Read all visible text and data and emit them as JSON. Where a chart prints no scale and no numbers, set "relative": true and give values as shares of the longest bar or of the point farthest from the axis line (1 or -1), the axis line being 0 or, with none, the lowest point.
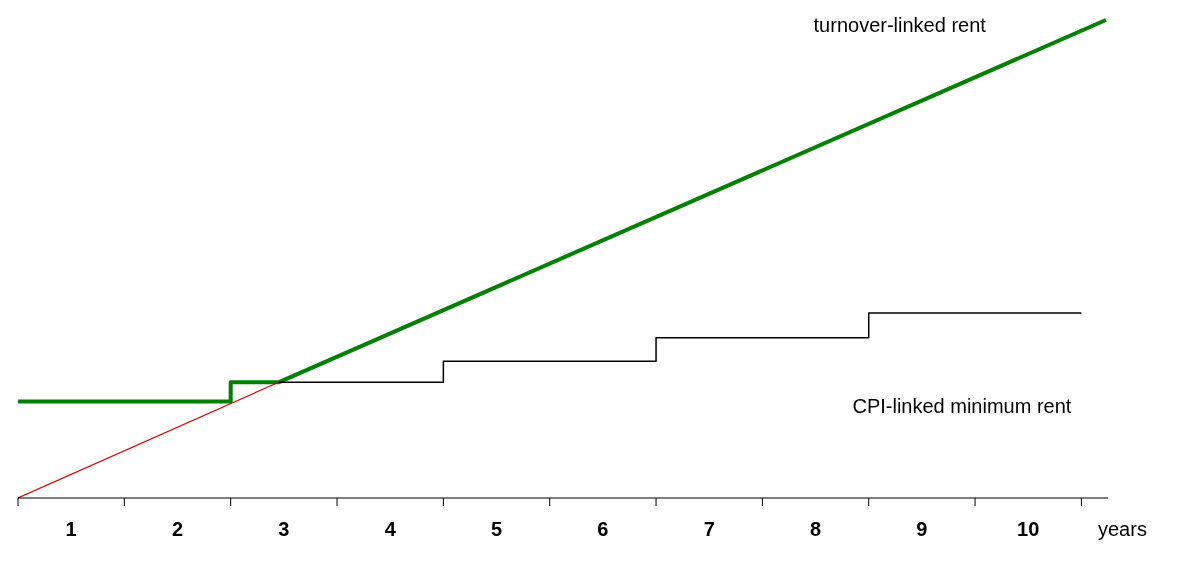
{
  "chart_data": {
    "type": "line",
    "relative": true,
    "xlabel": "years",
    "xlim": [
      0,
      10.25
    ],
    "xticks": [
      {
        "value": 0,
        "label": null
      },
      {
        "value": 0.5,
        "label": "1"
      },
      {
        "value": 1,
        "label": null
      },
      {
        "value": 1.5,
        "label": "2"
      },
      {
        "value": 2,
        "label": null
      },
      {
        "value": 2.5,
        "label": "3"
      },
      {
        "value": 3,
        "label": null
      },
      {
        "value": 3.5,
        "label": "4"
      },
      {
        "value": 4,
        "label": null
      },
      {
        "value": 4.5,
        "label": "5"
      },
      {
        "value": 5,
        "label": null
      },
      {
        "value": 5.5,
        "label": "6"
      },
      {
        "value": 6,
        "label": null
      },
      {
        "value": 6.5,
        "label": "7"
      },
      {
        "value": 7,
        "label": null
      },
      {
        "value": 7.5,
        "label": "8"
      },
      {
        "value": 8,
        "label": null
      },
      {
        "value": 8.5,
        "label": "9"
      },
      {
        "value": 9,
        "label": null
      },
      {
        "value": 9.5,
        "label": "10"
      },
      {
        "value": 10,
        "label": null
      }
    ],
    "grid": false,
    "legend": false,
    "marker": "none",
    "series": [
      {
        "name": "turnover-linked rent",
        "color": "#008000",
        "x": [
          0,
          2,
          2,
          2.45,
          10.23
        ],
        "values": [
          0.202,
          0.202,
          0.242,
          0.242,
          1
        ]
      },
      {
        "color": "#e00000",
        "x": [
          0,
          2.45
        ],
        "values": [
          0,
          0.242
        ]
      },
      {
        "name": "CPI-linked minimum rent",
        "color": "#000000",
        "x": [
          2.45,
          4,
          4,
          6,
          6,
          8,
          8,
          10
        ],
        "values": [
          0.242,
          0.242,
          0.286,
          0.286,
          0.335,
          0.335,
          0.387,
          0.387
        ]
      }
    ]
  }
}
